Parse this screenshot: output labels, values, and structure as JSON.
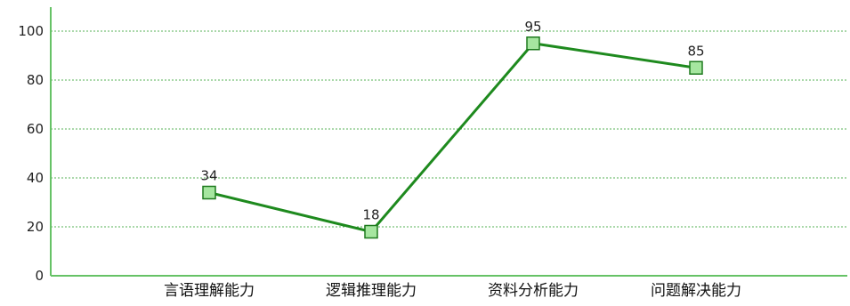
{
  "chart_data": {
    "type": "line",
    "title": "",
    "xlabel": "",
    "ylabel": "",
    "categories": [
      "言语理解能力",
      "逻辑推理能力",
      "资料分析能力",
      "问题解决能力"
    ],
    "series": [
      {
        "values": [
          34,
          18,
          95,
          85
        ]
      }
    ],
    "ylim": [
      0,
      110
    ],
    "yticks": [
      0,
      20,
      40,
      60,
      80,
      100
    ],
    "grid": true,
    "grid_style": "dotted-horizontal",
    "legend": "none",
    "show_data_labels": true,
    "colors": {
      "axis": "#66c266",
      "grid": "#55b055",
      "line": "#1e8a1e",
      "marker_fill": "#a6e6a0",
      "marker_stroke": "#1e7a1e"
    }
  }
}
